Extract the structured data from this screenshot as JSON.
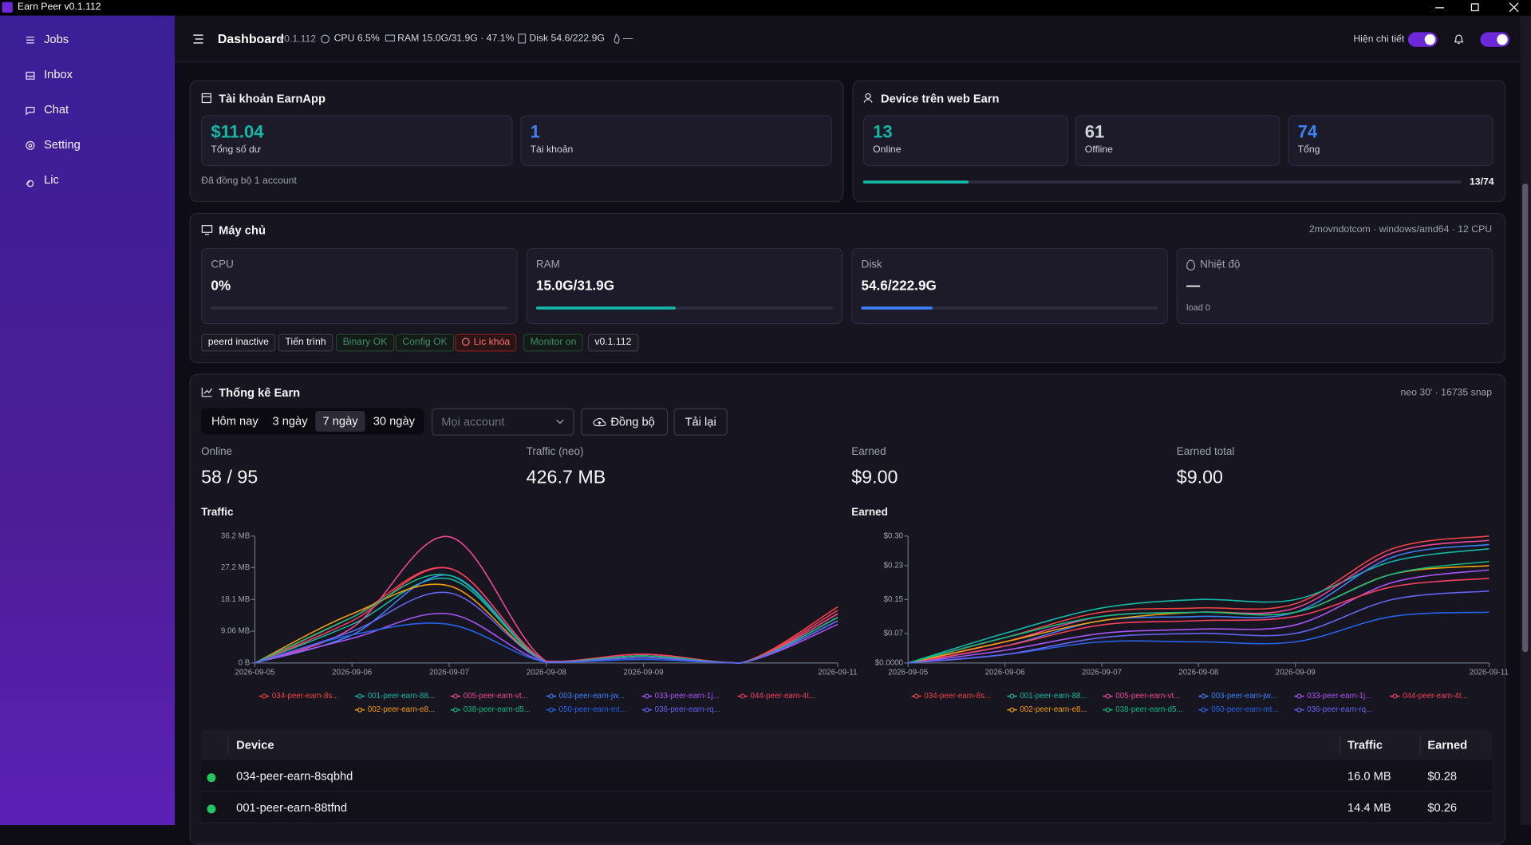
{
  "window": {
    "title": "Earn Peer v0.1.112"
  },
  "sidebar": {
    "items": [
      "Jobs",
      "Inbox",
      "Chat",
      "Setting",
      "Lic"
    ]
  },
  "topbar": {
    "title": "Dashboard",
    "version": "v0.1.112",
    "cpu": "CPU 6.5%",
    "ram": "RAM 15.0G/31.9G · 47.1%",
    "disk": "Disk 54.6/222.9G",
    "temp": "—",
    "detail_toggle": "Hiện chi tiết"
  },
  "earnapp": {
    "title": "Tài khoản EarnApp",
    "stats": [
      {
        "value": "$11.04",
        "label": "Tổng số dư"
      },
      {
        "value": "1",
        "label": "Tài khoản"
      }
    ],
    "note": "Đã đồng bộ 1 account"
  },
  "devices": {
    "title": "Device trên web Earn",
    "stats": [
      {
        "value": "13",
        "label": "Online"
      },
      {
        "value": "61",
        "label": "Offline"
      },
      {
        "value": "74",
        "label": "Tổng"
      }
    ],
    "progress": "13/74"
  },
  "server": {
    "title": "Máy chủ",
    "info": "2movndotcom · windows/amd64 · 12 CPU",
    "metrics": [
      {
        "label": "CPU",
        "value": "0%"
      },
      {
        "label": "RAM",
        "value": "15.0G/31.9G"
      },
      {
        "label": "Disk",
        "value": "54.6/222.9G"
      },
      {
        "label": "Nhiệt độ",
        "value": "—",
        "note": "load 0"
      }
    ],
    "tags": [
      "peerd inactive",
      "Tiến trình",
      "Binary OK",
      "Config OK",
      "Lic khóa",
      "Monitor on",
      "v0.1.112"
    ]
  },
  "stats": {
    "title": "Thống kê Earn",
    "meta": "neo 30' · 16735 snap",
    "ranges": [
      "Hôm nay",
      "3 ngày",
      "7 ngày",
      "30 ngày"
    ],
    "account_placeholder": "Mọi account",
    "sync_button": "Đồng bộ",
    "reload_button": "Tải lại",
    "summary": [
      {
        "label": "Online",
        "value": "58 / 95"
      },
      {
        "label": "Traffic (neo)",
        "value": "426.7 MB"
      },
      {
        "label": "Earned",
        "value": "$9.00"
      },
      {
        "label": "Earned total",
        "value": "$9.00"
      }
    ]
  },
  "chart_data": [
    {
      "type": "line",
      "title": "Traffic",
      "categories": [
        "2026-09-05",
        "2026-09-06",
        "2026-09-07",
        "2026-09-08",
        "2026-09-09",
        null,
        "2026-09-11"
      ],
      "ylim": [
        0,
        36.2
      ],
      "yticks": [
        {
          "value": 0,
          "label": "0 B"
        },
        {
          "value": 9.06,
          "label": "9.06 MB"
        },
        {
          "value": 18.1,
          "label": "18.1 MB"
        },
        {
          "value": 27.2,
          "label": "27.2 MB"
        },
        {
          "value": 36.2,
          "label": "36.2 MB"
        }
      ],
      "series": [
        {
          "name": "034-peer-earn-8s...",
          "color": "#ef4444",
          "values": [
            0,
            13,
            27,
            0.5,
            2,
            0,
            16
          ]
        },
        {
          "name": "001-peer-earn-88...",
          "color": "#14b8a6",
          "values": [
            0,
            11,
            24,
            0.3,
            2,
            0,
            13
          ]
        },
        {
          "name": "005-peer-earn-vt...",
          "color": "#ec4899",
          "values": [
            0,
            10,
            36,
            0.5,
            2.5,
            0,
            14
          ]
        },
        {
          "name": "003-peer-earn-jw...",
          "color": "#3b82f6",
          "values": [
            0,
            8,
            25,
            0.3,
            2,
            0,
            12
          ]
        },
        {
          "name": "033-peer-earn-1j...",
          "color": "#a855f7",
          "values": [
            0,
            7,
            14,
            0.2,
            1.5,
            0,
            11
          ]
        },
        {
          "name": "044-peer-earn-4t...",
          "color": "#f43f5e",
          "values": [
            0,
            12,
            27,
            0.5,
            2.5,
            0,
            15
          ]
        },
        {
          "name": "002-peer-earn-e8...",
          "color": "#f59e0b",
          "values": [
            0,
            14,
            22,
            0.3,
            2,
            0,
            13
          ]
        },
        {
          "name": "038-peer-earn-d5...",
          "color": "#10b981",
          "values": [
            0,
            13,
            25,
            0.3,
            2,
            0,
            13
          ]
        },
        {
          "name": "050-peer-earn-mt...",
          "color": "#2563eb",
          "values": [
            0,
            8,
            11,
            0.2,
            1,
            0,
            12
          ]
        },
        {
          "name": "036-peer-earn-rq...",
          "color": "#6366f1",
          "values": [
            0,
            9,
            20,
            0.3,
            1.5,
            0,
            12
          ]
        }
      ]
    },
    {
      "type": "line",
      "title": "Earned",
      "categories": [
        "2026-09-05",
        "2026-09-06",
        "2026-09-07",
        "2026-09-08",
        "2026-09-09",
        null,
        "2026-09-11"
      ],
      "ylim": [
        0,
        0.3
      ],
      "yticks": [
        {
          "value": 0,
          "label": "$0.0000"
        },
        {
          "value": 0.07,
          "label": "$0.07"
        },
        {
          "value": 0.15,
          "label": "$0.15"
        },
        {
          "value": 0.23,
          "label": "$0.23"
        },
        {
          "value": 0.3,
          "label": "$0.30"
        }
      ],
      "series": [
        {
          "name": "034-peer-earn-8s...",
          "color": "#ef4444",
          "values": [
            0,
            0.06,
            0.12,
            0.13,
            0.14,
            0.27,
            0.3
          ]
        },
        {
          "name": "001-peer-earn-88...",
          "color": "#14b8a6",
          "values": [
            0,
            0.07,
            0.13,
            0.15,
            0.15,
            0.24,
            0.27
          ]
        },
        {
          "name": "005-peer-earn-vt...",
          "color": "#ec4899",
          "values": [
            0,
            0.05,
            0.11,
            0.12,
            0.13,
            0.26,
            0.29
          ]
        },
        {
          "name": "003-peer-earn-jw...",
          "color": "#3b82f6",
          "values": [
            0,
            0.04,
            0.1,
            0.11,
            0.12,
            0.25,
            0.28
          ]
        },
        {
          "name": "033-peer-earn-1j...",
          "color": "#a855f7",
          "values": [
            0,
            0.03,
            0.07,
            0.08,
            0.09,
            0.19,
            0.22
          ]
        },
        {
          "name": "044-peer-earn-4t...",
          "color": "#f43f5e",
          "values": [
            0,
            0.04,
            0.09,
            0.1,
            0.11,
            0.18,
            0.2
          ]
        },
        {
          "name": "002-peer-earn-e8...",
          "color": "#f59e0b",
          "values": [
            0,
            0.05,
            0.1,
            0.12,
            0.12,
            0.21,
            0.23
          ]
        },
        {
          "name": "038-peer-earn-d5...",
          "color": "#10b981",
          "values": [
            0,
            0.06,
            0.11,
            0.12,
            0.12,
            0.21,
            0.24
          ]
        },
        {
          "name": "050-peer-earn-mt...",
          "color": "#2563eb",
          "values": [
            0,
            0.02,
            0.05,
            0.05,
            0.05,
            0.11,
            0.12
          ]
        },
        {
          "name": "036-peer-earn-rq...",
          "color": "#6366f1",
          "values": [
            0,
            0.02,
            0.06,
            0.07,
            0.07,
            0.15,
            0.17
          ]
        }
      ]
    }
  ],
  "table": {
    "headers": [
      "Device",
      "Traffic",
      "Earned"
    ],
    "rows": [
      [
        "034-peer-earn-8sqbhd",
        "16.0 MB",
        "$0.28"
      ],
      [
        "001-peer-earn-88tfnd",
        "14.4 MB",
        "$0.26"
      ]
    ]
  }
}
